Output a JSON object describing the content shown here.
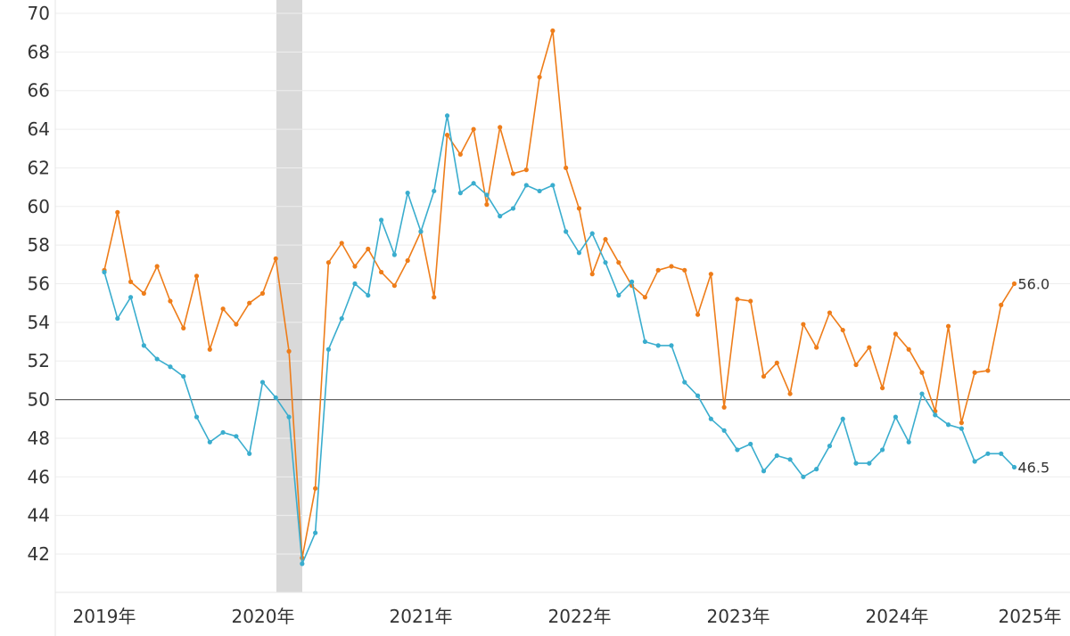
{
  "chart_data": {
    "type": "line",
    "title": "",
    "xlabel": "",
    "ylabel": "",
    "ylim": [
      40,
      70
    ],
    "yticks": [
      42,
      44,
      46,
      48,
      50,
      52,
      54,
      56,
      58,
      60,
      62,
      64,
      66,
      68,
      70
    ],
    "xtick_labels": [
      "2019年",
      "2020年",
      "2021年",
      "2022年",
      "2023年",
      "2024年",
      "2025年"
    ],
    "grid": true,
    "reference_line": 50,
    "shaded_region": {
      "from_index": 13.3,
      "to_index": 15.2,
      "color": "#d9d9d9"
    },
    "start": "2019-01",
    "frequency": "monthly",
    "series": [
      {
        "name": "orange-series",
        "color": "#ee7d1a",
        "end_label": "56.0",
        "values": [
          56.7,
          59.7,
          56.1,
          55.5,
          56.9,
          55.1,
          53.7,
          56.4,
          52.6,
          54.7,
          53.9,
          55.0,
          55.5,
          57.3,
          52.5,
          41.8,
          45.4,
          57.1,
          58.1,
          56.9,
          57.8,
          56.6,
          55.9,
          57.2,
          58.7,
          55.3,
          63.7,
          62.7,
          64.0,
          60.1,
          64.1,
          61.7,
          61.9,
          66.7,
          69.1,
          62.0,
          59.9,
          56.5,
          58.3,
          57.1,
          55.9,
          55.3,
          56.7,
          56.9,
          56.7,
          54.4,
          56.5,
          49.6,
          55.2,
          55.1,
          51.2,
          51.9,
          50.3,
          53.9,
          52.7,
          54.5,
          53.6,
          51.8,
          52.7,
          50.6,
          53.4,
          52.6,
          51.4,
          49.4,
          53.8,
          48.8,
          51.4,
          51.5,
          54.9,
          56.0
        ]
      },
      {
        "name": "blue-series",
        "color": "#3aadce",
        "end_label": "46.5",
        "values": [
          56.6,
          54.2,
          55.3,
          52.8,
          52.1,
          51.7,
          51.2,
          49.1,
          47.8,
          48.3,
          48.1,
          47.2,
          50.9,
          50.1,
          49.1,
          41.5,
          43.1,
          52.6,
          54.2,
          56.0,
          55.4,
          59.3,
          57.5,
          60.7,
          58.7,
          60.8,
          64.7,
          60.7,
          61.2,
          60.6,
          59.5,
          59.9,
          61.1,
          60.8,
          61.1,
          58.7,
          57.6,
          58.6,
          57.1,
          55.4,
          56.1,
          53.0,
          52.8,
          52.8,
          50.9,
          50.2,
          49.0,
          48.4,
          47.4,
          47.7,
          46.3,
          47.1,
          46.9,
          46.0,
          46.4,
          47.6,
          49.0,
          46.7,
          46.7,
          47.4,
          49.1,
          47.8,
          50.3,
          49.2,
          48.7,
          48.5,
          46.8,
          47.2,
          47.2,
          46.5
        ]
      }
    ]
  }
}
